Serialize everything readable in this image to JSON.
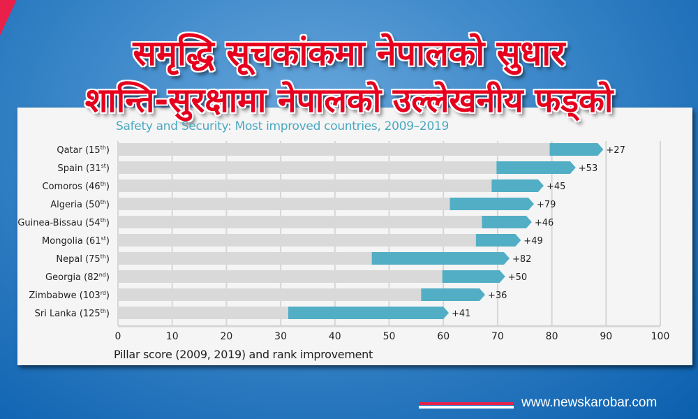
{
  "headline": {
    "line1": "समृद्धि सूचकांकमा नेपालको सुधार",
    "line2": "शान्ति-सुरक्षामा नेपालको उल्लेखनीय फड्को"
  },
  "footer": {
    "url": "www.newskarobar.com"
  },
  "colors": {
    "accent": "#52aec5",
    "base_bar": "#d9d9d9",
    "headline": "#e6001e",
    "title": "#4aa8c0"
  },
  "chart_data": {
    "type": "bar",
    "title": "Safety and Security: Most improved countries, 2009–2019",
    "xlabel": "Pillar score (2009, 2019) and rank improvement",
    "ylabel": "",
    "xlim": [
      0,
      100
    ],
    "xticks": [
      "0",
      "10",
      "20",
      "30",
      "40",
      "50",
      "60",
      "70",
      "80",
      "90",
      "100"
    ],
    "grid": true,
    "categories": [
      {
        "name": "Qatar",
        "rank": "15",
        "suffix": "th"
      },
      {
        "name": "Spain",
        "rank": "31",
        "suffix": "st"
      },
      {
        "name": "Comoros",
        "rank": "46",
        "suffix": "th"
      },
      {
        "name": "Algeria",
        "rank": "50",
        "suffix": "th"
      },
      {
        "name": "Guinea-Bissau",
        "rank": "54",
        "suffix": "th"
      },
      {
        "name": "Mongolia",
        "rank": "61",
        "suffix": "st"
      },
      {
        "name": "Nepal",
        "rank": "75",
        "suffix": "th"
      },
      {
        "name": "Georgia",
        "rank": "82",
        "suffix": "nd"
      },
      {
        "name": "Zimbabwe",
        "rank": "103",
        "suffix": "rd"
      },
      {
        "name": "Sri Lanka",
        "rank": "125",
        "suffix": "th"
      }
    ],
    "series": [
      {
        "name": "2009",
        "values": [
          79.6,
          69.8,
          68.9,
          61.2,
          67.1,
          66.0,
          46.8,
          59.8,
          55.9,
          31.4
        ]
      },
      {
        "name": "2019",
        "values": [
          89.5,
          84.4,
          78.5,
          76.7,
          76.3,
          74.3,
          72.2,
          71.4,
          67.7,
          61.0
        ]
      }
    ],
    "rank_improvement": [
      "+27",
      "+53",
      "+45",
      "+79",
      "+46",
      "+49",
      "+82",
      "+50",
      "+36",
      "+41"
    ]
  }
}
